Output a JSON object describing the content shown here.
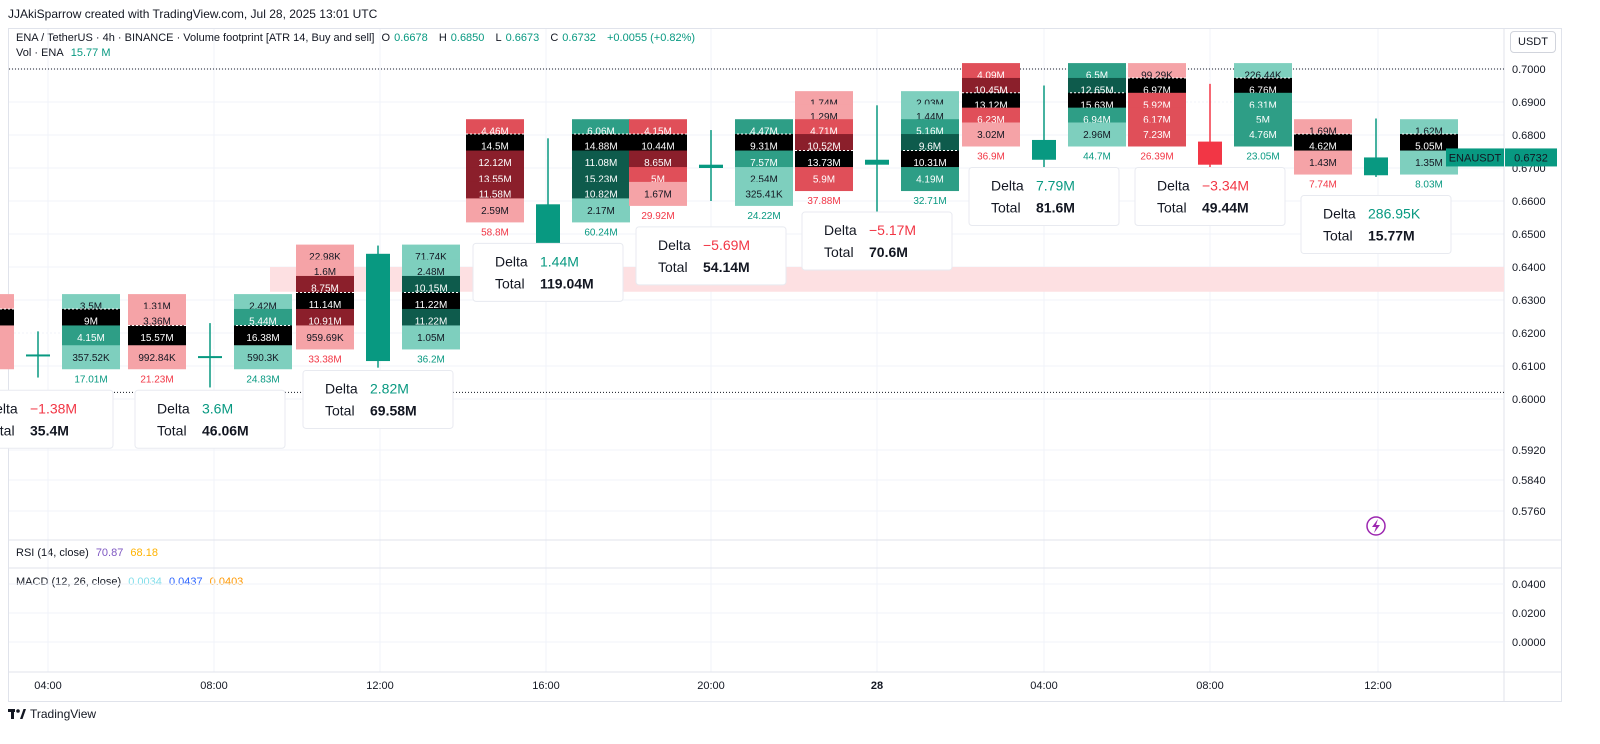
{
  "header": {
    "credit": "JJAkiSparrow created with TradingView.com, Jul 28, 2025 13:01 UTC",
    "symbol": "ENA / TetherUS · 4h · BINANCE · Volume footprint [ATR 14, Buy and sell]",
    "o_label": "O",
    "o": "0.6678",
    "h_label": "H",
    "h": "0.6850",
    "l_label": "L",
    "l": "0.6673",
    "c_label": "C",
    "c": "0.6732",
    "change": "+0.0055 (+0.82%)",
    "vol_label": "Vol · ENA",
    "vol": "15.77 M",
    "rsi_label": "RSI (14, close)",
    "rsi_1": "70.87",
    "rsi_2": "68.18",
    "macd_label": "MACD (12, 26, close)",
    "macd_1": "0.0034",
    "macd_2": "0.0437",
    "macd_3": "0.0403",
    "currency": "USDT",
    "brand": "TradingView"
  },
  "colors": {
    "up": "#089981",
    "down": "#f23645",
    "buy_light": "#7ecfbe",
    "buy_dark": "#0e5b4c",
    "sell_light": "#f5a3a7",
    "sell_dark": "#8b1f2b",
    "poc": "#000000"
  },
  "chart_data": {
    "type": "footprint",
    "symbol": "ENAUSDT",
    "timeframe": "4h",
    "last_price": "0.6732",
    "last_label": "ENAUSDT",
    "ylim": [
      0.565,
      0.703
    ],
    "price_ticks": [
      "0.7000",
      "0.6900",
      "0.6800",
      "0.6700",
      "0.6600",
      "0.6500",
      "0.6400",
      "0.6300",
      "0.6200",
      "0.6100",
      "0.6000",
      "0.5920",
      "0.5840",
      "0.5760"
    ],
    "macd_ticks": [
      "0.0400",
      "0.0200",
      "0.0000"
    ],
    "time_ticks": [
      "04:00",
      "08:00",
      "12:00",
      "16:00",
      "20:00",
      "28",
      "04:00",
      "08:00",
      "12:00"
    ],
    "delta_label": "Delta",
    "total_label": "Total",
    "bars": [
      {
        "time": "04:00",
        "open": 0.6135,
        "high": 0.6205,
        "low": 0.6065,
        "close": 0.6135,
        "rows": [
          {
            "p": 0.628,
            "sell": "",
            "buy": "3.5M"
          },
          {
            "p": 0.6235,
            "sell": "",
            "buy": "9M"
          },
          {
            "p": 0.6185,
            "sell": "",
            "buy": "4.15M"
          },
          {
            "p": 0.6125,
            "sell": "K",
            "buy": "357.52K"
          }
        ],
        "sell_total": "M",
        "buy_total": "17.01M",
        "delta": "−1.38M",
        "delta_sign": "down",
        "total": "35.4M"
      },
      {
        "time": "08:00",
        "open": 0.613,
        "high": 0.623,
        "low": 0.6035,
        "close": 0.613,
        "rows": [
          {
            "p": 0.628,
            "sell": "1.31M",
            "buy": "2.42M"
          },
          {
            "p": 0.6235,
            "sell": "3.36M",
            "buy": "5.44M"
          },
          {
            "p": 0.6185,
            "sell": "15.57M",
            "buy": "16.38M"
          },
          {
            "p": 0.6125,
            "sell": "992.84K",
            "buy": "590.3K"
          }
        ],
        "sell_total": "21.23M",
        "buy_total": "24.83M",
        "delta": "3.6M",
        "delta_sign": "up",
        "total": "46.06M"
      },
      {
        "time": "12:00",
        "open": 0.6115,
        "high": 0.6465,
        "low": 0.6095,
        "close": 0.644,
        "rows": [
          {
            "p": 0.643,
            "sell": "22.98K",
            "buy": "71.74K"
          },
          {
            "p": 0.6385,
            "sell": "1.6M",
            "buy": "2.48M"
          },
          {
            "p": 0.6335,
            "sell": "8.75M",
            "buy": "10.15M"
          },
          {
            "p": 0.6285,
            "sell": "11.14M",
            "buy": "11.22M"
          },
          {
            "p": 0.6235,
            "sell": "10.91M",
            "buy": "11.22M"
          },
          {
            "p": 0.6185,
            "sell": "959.69K",
            "buy": "1.05M"
          }
        ],
        "sell_total": "33.38M",
        "buy_total": "36.2M",
        "delta": "2.82M",
        "delta_sign": "up",
        "total": "69.58M"
      },
      {
        "time": "16:00",
        "open": 0.643,
        "high": 0.679,
        "low": 0.642,
        "close": 0.659,
        "rows": [
          {
            "p": 0.681,
            "sell": "4.46M",
            "buy": "6.06M"
          },
          {
            "p": 0.6765,
            "sell": "14.5M",
            "buy": "14.88M"
          },
          {
            "p": 0.6715,
            "sell": "12.12M",
            "buy": "11.08M"
          },
          {
            "p": 0.6665,
            "sell": "13.55M",
            "buy": "15.23M"
          },
          {
            "p": 0.662,
            "sell": "11.58M",
            "buy": "10.82M"
          },
          {
            "p": 0.657,
            "sell": "2.59M",
            "buy": "2.17M"
          }
        ],
        "sell_total": "58.8M",
        "buy_total": "60.24M",
        "delta": "1.44M",
        "delta_sign": "up",
        "total": "119.04M"
      },
      {
        "time": "20:00",
        "open": 0.67,
        "high": 0.6815,
        "low": 0.66,
        "close": 0.671,
        "rows": [
          {
            "p": 0.681,
            "sell": "4.15M",
            "buy": "4.47M"
          },
          {
            "p": 0.6765,
            "sell": "10.44M",
            "buy": "9.31M"
          },
          {
            "p": 0.6715,
            "sell": "8.65M",
            "buy": "7.57M"
          },
          {
            "p": 0.6665,
            "sell": "5M",
            "buy": "2.54M"
          },
          {
            "p": 0.662,
            "sell": "1.67M",
            "buy": "325.41K"
          }
        ],
        "sell_total": "29.92M",
        "buy_total": "24.22M",
        "delta": "−5.69M",
        "delta_sign": "down",
        "total": "54.14M"
      },
      {
        "time": "00:00",
        "open": 0.671,
        "high": 0.689,
        "low": 0.6555,
        "close": 0.6725,
        "rows": [
          {
            "p": 0.6895,
            "sell": "1.74M",
            "buy": "2.03M"
          },
          {
            "p": 0.6855,
            "sell": "1.29M",
            "buy": "1.44M"
          },
          {
            "p": 0.681,
            "sell": "4.71M",
            "buy": "5.16M"
          },
          {
            "p": 0.6765,
            "sell": "10.52M",
            "buy": "9.6M"
          },
          {
            "p": 0.6715,
            "sell": "13.73M",
            "buy": "10.31M"
          },
          {
            "p": 0.6665,
            "sell": "5.9M",
            "buy": "4.19M"
          }
        ],
        "sell_total": "37.88M",
        "buy_total": "32.71M",
        "delta": "−5.17M",
        "delta_sign": "down",
        "total": "70.6M"
      },
      {
        "time": "04:00",
        "open": 0.6725,
        "high": 0.695,
        "low": 0.669,
        "close": 0.6785,
        "rows": [
          {
            "p": 0.698,
            "sell": "4.09M",
            "buy": "6.5M"
          },
          {
            "p": 0.6935,
            "sell": "10.45M",
            "buy": "12.65M"
          },
          {
            "p": 0.689,
            "sell": "13.12M",
            "buy": "15.63M"
          },
          {
            "p": 0.6845,
            "sell": "6.23M",
            "buy": "6.94M"
          },
          {
            "p": 0.68,
            "sell": "3.02M",
            "buy": "2.96M"
          }
        ],
        "sell_total": "36.9M",
        "buy_total": "44.7M",
        "delta": "7.79M",
        "delta_sign": "up",
        "total": "81.6M"
      },
      {
        "time": "08:00",
        "open": 0.678,
        "high": 0.6955,
        "low": 0.668,
        "close": 0.671,
        "rows": [
          {
            "p": 0.698,
            "sell": "99.29K",
            "buy": "226.44K"
          },
          {
            "p": 0.6935,
            "sell": "6.97M",
            "buy": "6.76M"
          },
          {
            "p": 0.689,
            "sell": "5.92M",
            "buy": "6.31M"
          },
          {
            "p": 0.6845,
            "sell": "6.17M",
            "buy": "5M"
          },
          {
            "p": 0.68,
            "sell": "7.23M",
            "buy": "4.76M"
          }
        ],
        "sell_total": "26.39M",
        "buy_total": "23.05M",
        "delta": "−3.34M",
        "delta_sign": "down",
        "total": "49.44M"
      },
      {
        "time": "12:00",
        "open": 0.6678,
        "high": 0.685,
        "low": 0.6673,
        "close": 0.6732,
        "rows": [
          {
            "p": 0.681,
            "sell": "1.69M",
            "buy": "1.62M"
          },
          {
            "p": 0.6765,
            "sell": "4.62M",
            "buy": "5.05M"
          },
          {
            "p": 0.6715,
            "sell": "1.43M",
            "buy": "1.35M"
          }
        ],
        "sell_total": "7.74M",
        "buy_total": "8.03M",
        "delta": "286.95K",
        "delta_sign": "up",
        "total": "15.77M"
      }
    ]
  }
}
